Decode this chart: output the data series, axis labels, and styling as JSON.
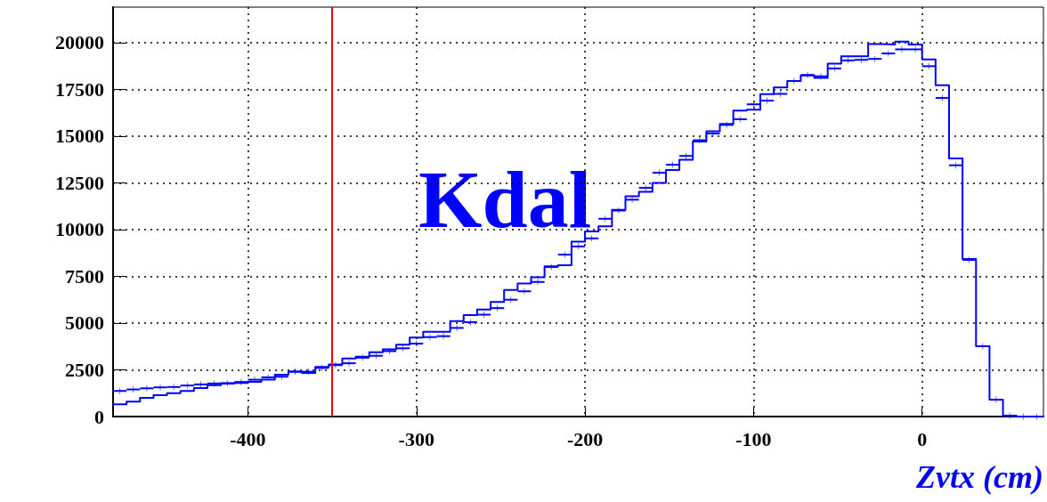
{
  "chart_data": {
    "type": "histogram",
    "xlabel": "Zvtx (cm)",
    "annotations": [
      "Kdal"
    ],
    "xlim": [
      -480,
      72
    ],
    "ylim": [
      0,
      21900
    ],
    "xticks": [
      -400,
      -300,
      -200,
      -100,
      0
    ],
    "yticks": [
      0,
      2500,
      5000,
      7500,
      10000,
      12500,
      15000,
      17500,
      20000
    ],
    "grid": true,
    "ref_lines": [
      {
        "axis": "x",
        "value": -350,
        "color": "#ff0000"
      }
    ],
    "series": [
      {
        "type": "histogram",
        "color": "#0000ff",
        "bins": [
          -480,
          -472,
          -464,
          -456,
          -448,
          -440,
          -432,
          -424,
          -416,
          -408,
          -400,
          -392,
          -384,
          -376,
          -368,
          -360,
          -352,
          -344,
          -336,
          -328,
          -320,
          -312,
          -304,
          -296,
          -288,
          -280,
          -272,
          -264,
          -256,
          -248,
          -240,
          -232,
          -224,
          -216,
          -208,
          -200,
          -192,
          -184,
          -176,
          -168,
          -160,
          -152,
          -144,
          -136,
          -128,
          -120,
          -112,
          -104,
          -96,
          -88,
          -80,
          -72,
          -64,
          -56,
          -48,
          -40,
          -32,
          -24,
          -16,
          -8,
          0,
          8,
          16,
          24,
          32,
          40,
          48,
          56,
          64,
          72
        ],
        "values": [
          650,
          800,
          1000,
          1140,
          1250,
          1370,
          1520,
          1680,
          1760,
          1800,
          1860,
          1970,
          2240,
          2410,
          2330,
          2660,
          2790,
          3110,
          3200,
          3440,
          3600,
          3840,
          4220,
          4540,
          4540,
          5110,
          5430,
          5730,
          6130,
          6770,
          7120,
          7450,
          8030,
          8090,
          9360,
          9900,
          10180,
          11060,
          11780,
          12020,
          12500,
          13190,
          13730,
          14710,
          15260,
          15650,
          16360,
          16410,
          17250,
          17600,
          17950,
          18250,
          18110,
          18880,
          19270,
          19270,
          19930,
          19900,
          20050,
          19900,
          19100,
          17720,
          13810,
          8430,
          3760,
          900,
          50,
          0,
          0
        ]
      },
      {
        "type": "scatter",
        "color": "#0000ff",
        "marker": "cross",
        "x": [
          -476,
          -468,
          -460,
          -452,
          -444,
          -436,
          -428,
          -420,
          -412,
          -404,
          -396,
          -388,
          -380,
          -372,
          -364,
          -356,
          -348,
          -340,
          -332,
          -324,
          -316,
          -308,
          -300,
          -292,
          -284,
          -276,
          -268,
          -260,
          -252,
          -244,
          -236,
          -228,
          -220,
          -212,
          -204,
          -196,
          -188,
          -180,
          -172,
          -164,
          -156,
          -148,
          -140,
          -132,
          -124,
          -116,
          -108,
          -100,
          -92,
          -84,
          -76,
          -68,
          -60,
          -52,
          -44,
          -36,
          -28,
          -20,
          -12,
          -4,
          4,
          12,
          20,
          28,
          36,
          44,
          52,
          60,
          68
        ],
        "values": [
          1370,
          1450,
          1510,
          1560,
          1580,
          1660,
          1720,
          1770,
          1790,
          1850,
          1970,
          2100,
          2130,
          2400,
          2400,
          2600,
          2750,
          2850,
          3150,
          3250,
          3500,
          3650,
          3900,
          4250,
          4300,
          4740,
          5050,
          5450,
          5800,
          6250,
          6700,
          7200,
          8000,
          8660,
          9100,
          9530,
          10580,
          11020,
          11600,
          12230,
          13040,
          13470,
          13940,
          14780,
          15140,
          15600,
          15900,
          16700,
          16900,
          17260,
          17950,
          18270,
          18200,
          18620,
          19050,
          19080,
          19130,
          19420,
          19640,
          19640,
          18740,
          17040,
          13440,
          8380,
          3760,
          900,
          50,
          0,
          0
        ],
        "xerrors": [
          4,
          4,
          4,
          4,
          4,
          4,
          4,
          4,
          4,
          4,
          4,
          4,
          4,
          4,
          4,
          4,
          4,
          4,
          4,
          4,
          4,
          4,
          4,
          4,
          4,
          4,
          4,
          4,
          4,
          4,
          4,
          4,
          4,
          4,
          4,
          4,
          4,
          4,
          4,
          4,
          4,
          4,
          4,
          4,
          4,
          4,
          4,
          4,
          4,
          4,
          4,
          4,
          4,
          4,
          4,
          4,
          4,
          4,
          4,
          4,
          4,
          4,
          4,
          4,
          4,
          4,
          4,
          4,
          4
        ]
      }
    ]
  }
}
